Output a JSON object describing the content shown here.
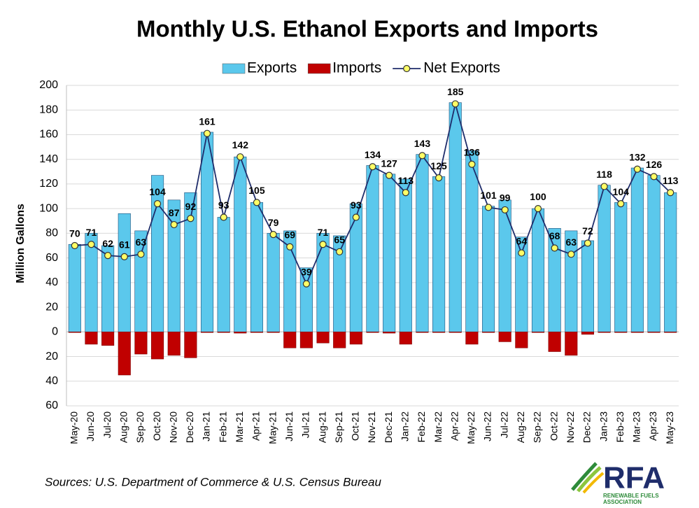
{
  "chart_data": {
    "type": "bar",
    "title": "Monthly U.S. Ethanol Exports and Imports",
    "y_label": "Million Gallons",
    "source": "Sources: U.S. Department of Commerce & U.S. Census Bureau",
    "logo_text": "RFA",
    "logo_subtext": "RENEWABLE FUELS ASSOCIATION",
    "legend": "top",
    "grid": true,
    "categories": [
      "May-20",
      "Jun-20",
      "Jul-20",
      "Aug-20",
      "Sep-20",
      "Oct-20",
      "Nov-20",
      "Dec-20",
      "Jan-21",
      "Feb-21",
      "Mar-21",
      "Apr-21",
      "May-21",
      "Jun-21",
      "Jul-21",
      "Aug-21",
      "Sep-21",
      "Oct-21",
      "Nov-21",
      "Dec-21",
      "Jan-22",
      "Feb-22",
      "Mar-22",
      "Apr-22",
      "May-22",
      "Jun-22",
      "Jul-22",
      "Aug-22",
      "Sep-22",
      "Oct-22",
      "Nov-22",
      "Dec-22",
      "Jan-23",
      "Feb-23",
      "Mar-23",
      "Apr-23",
      "May-23"
    ],
    "series": [
      {
        "name": "Exports",
        "type": "bar",
        "color": "#5bc8ec",
        "values": [
          71,
          80,
          70,
          96,
          82,
          127,
          107,
          113,
          162,
          93,
          142,
          105,
          80,
          82,
          52,
          80,
          78,
          104,
          135,
          128,
          124,
          144,
          126,
          186,
          147,
          102,
          107,
          77,
          100,
          84,
          82,
          74,
          119,
          105,
          133,
          127,
          113
        ]
      },
      {
        "name": "Imports",
        "type": "bar",
        "color": "#c00000",
        "values": [
          -0.5,
          -10,
          -11,
          -35,
          -18,
          -22,
          -19,
          -21,
          -0.5,
          -0.5,
          -1,
          -0.5,
          -0.5,
          -13,
          -13,
          -9,
          -13,
          -10,
          -0.5,
          -1,
          -10,
          -0.5,
          -0.5,
          -0.5,
          -10,
          -0.5,
          -8,
          -13,
          -0.5,
          -16,
          -19,
          -2,
          -0.5,
          -0.5,
          -0.5,
          -0.5,
          -0.5
        ]
      },
      {
        "name": "Net Exports",
        "type": "line",
        "color": "#1f2d6b",
        "marker_color": "#ffff66",
        "values": [
          70,
          71,
          62,
          61,
          63,
          104,
          87,
          92,
          161,
          93,
          142,
          105,
          79,
          69,
          39,
          71,
          65,
          93,
          134,
          127,
          113,
          143,
          125,
          185,
          136,
          101,
          99,
          64,
          100,
          68,
          63,
          72,
          118,
          104,
          132,
          126,
          113
        ]
      }
    ],
    "ylim": [
      -60,
      200
    ],
    "yticks": [
      {
        "value": -60,
        "label": "60"
      },
      {
        "value": -40,
        "label": "40"
      },
      {
        "value": -20,
        "label": "20"
      },
      0,
      20,
      40,
      60,
      80,
      100,
      120,
      140,
      160,
      180,
      200
    ]
  }
}
